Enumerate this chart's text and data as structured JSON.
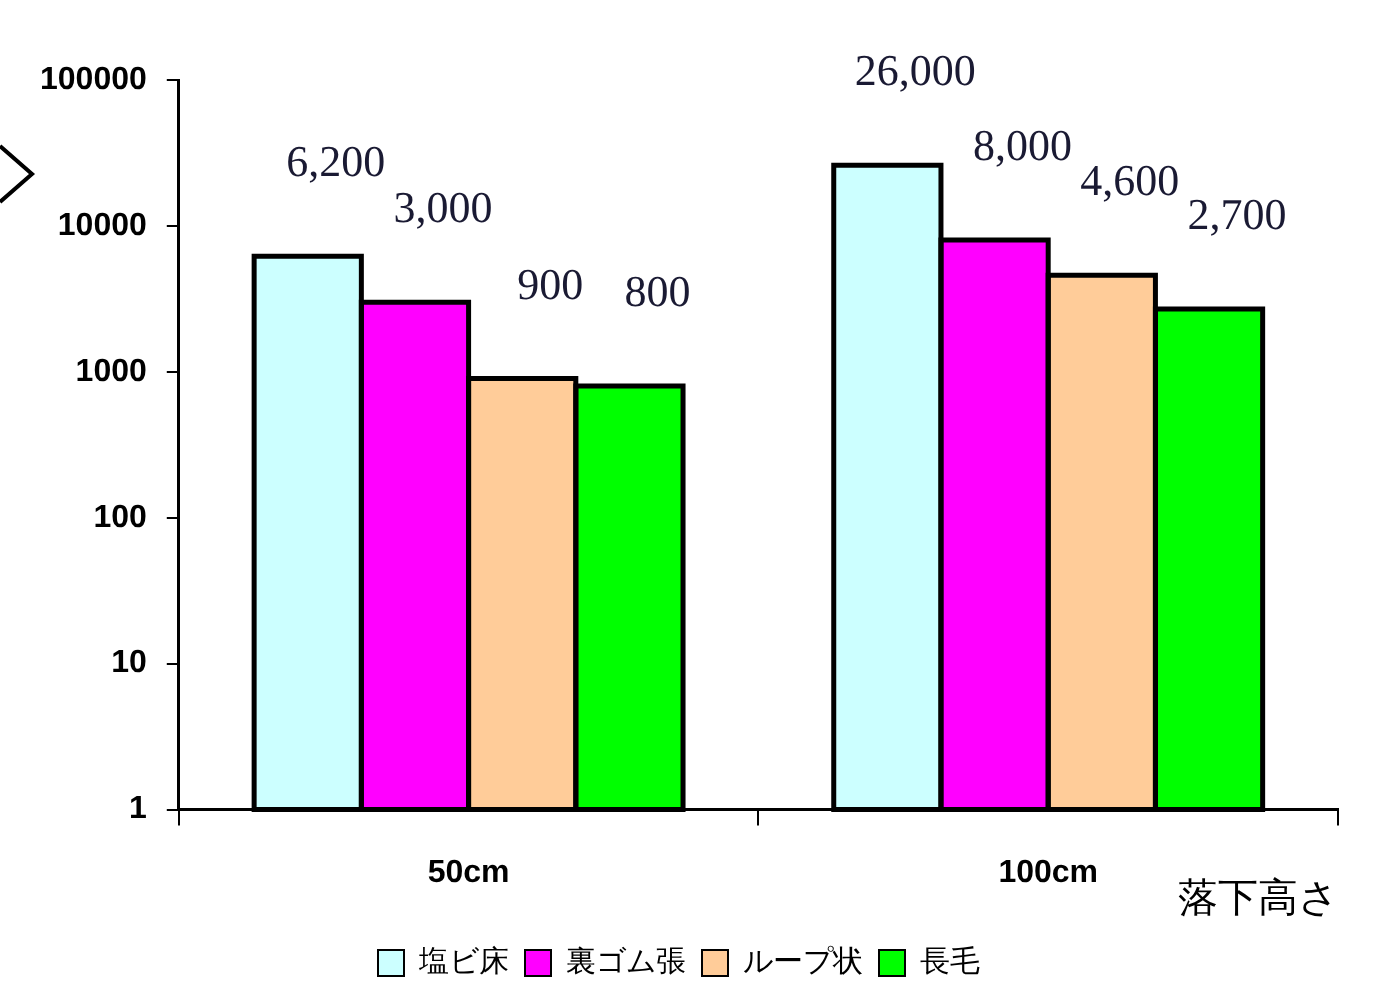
{
  "chart_data": {
    "type": "bar",
    "categories": [
      "50cm",
      "100cm"
    ],
    "xlabel": "落下高さ",
    "series": [
      {
        "name": "塩ビ床",
        "color": "#ccffff",
        "values": [
          6200,
          26000
        ],
        "value_labels": [
          "6,200",
          "26,000"
        ]
      },
      {
        "name": "裏ゴム張",
        "color": "#ff00ff",
        "values": [
          3000,
          8000
        ],
        "value_labels": [
          "3,000",
          "8,000"
        ]
      },
      {
        "name": "ループ状",
        "color": "#ffcc99",
        "values": [
          900,
          4600
        ],
        "value_labels": [
          "900",
          "4,600"
        ]
      },
      {
        "name": "長毛",
        "color": "#00ff00",
        "values": [
          800,
          2700
        ],
        "value_labels": [
          "800",
          "2,700"
        ]
      }
    ],
    "log": "y",
    "ylim": [
      1,
      100000
    ],
    "yticks": [
      1,
      10,
      100,
      1000,
      10000,
      100000
    ],
    "grid": false,
    "legend": "bottom"
  }
}
